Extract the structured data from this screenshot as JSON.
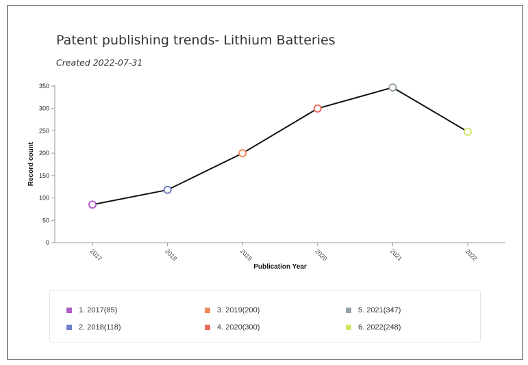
{
  "chart_data": {
    "type": "line",
    "title": "Patent publishing trends- Lithium Batteries",
    "subtitle": "Created 2022-07-31",
    "xlabel": "Publication Year",
    "ylabel": "Record count",
    "ylim": [
      0,
      350
    ],
    "yticks": [
      0,
      50,
      100,
      150,
      200,
      250,
      300,
      350
    ],
    "categories": [
      "2017",
      "2018",
      "2019",
      "2020",
      "2021",
      "2022"
    ],
    "values": [
      85,
      118,
      200,
      300,
      347,
      248
    ],
    "point_colors": [
      "#b05cc8",
      "#6f7ec6",
      "#f08a5d",
      "#ee6b5b",
      "#92a3ad",
      "#d4e56c"
    ],
    "line_color": "#111111",
    "legend": [
      {
        "label": "1. 2017(85)",
        "color": "#b05cc8"
      },
      {
        "label": "2. 2018(118)",
        "color": "#6f7ec6"
      },
      {
        "label": "3. 2019(200)",
        "color": "#f08a5d"
      },
      {
        "label": "4. 2020(300)",
        "color": "#ee6b5b"
      },
      {
        "label": "5. 2021(347)",
        "color": "#92a3ad"
      },
      {
        "label": "6. 2022(248)",
        "color": "#d4e56c"
      }
    ]
  }
}
